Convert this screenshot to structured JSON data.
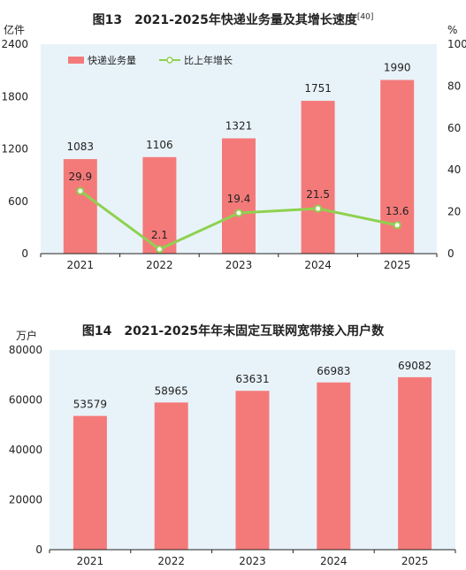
{
  "chart_data": [
    {
      "type": "bar",
      "title": "图13　2021-2025年快递业务量及其增长速度",
      "title_note": "[40]",
      "ylabel_left": "亿件",
      "ylabel_right": "%",
      "categories": [
        "2021",
        "2022",
        "2023",
        "2024",
        "2025"
      ],
      "ylim_left": [
        0,
        2400
      ],
      "yticks_left": [
        "0",
        "600",
        "1200",
        "1800",
        "2400"
      ],
      "ylim_right": [
        0,
        100
      ],
      "yticks_right": [
        "0",
        "20",
        "40",
        "60",
        "80",
        "100"
      ],
      "legend_position": "top-left",
      "series": [
        {
          "name": "快递业务量",
          "type": "bar",
          "axis": "left",
          "color": "#f47a7a",
          "values": [
            1083,
            1106,
            1321,
            1751,
            1990
          ],
          "labels": [
            "1083",
            "1106",
            "1321",
            "1751",
            "1990"
          ]
        },
        {
          "name": "比上年增长",
          "type": "line",
          "axis": "right",
          "color": "#8fd150",
          "values": [
            29.9,
            2.1,
            19.4,
            21.5,
            13.6
          ],
          "labels": [
            "29.9",
            "2.1",
            "19.4",
            "21.5",
            "13.6"
          ]
        }
      ]
    },
    {
      "type": "bar",
      "title": "图14　2021-2025年年末固定互联网宽带接入用户数",
      "ylabel": "万户",
      "categories": [
        "2021",
        "2022",
        "2023",
        "2024",
        "2025"
      ],
      "ylim": [
        0,
        80000
      ],
      "yticks": [
        "0",
        "20000",
        "40000",
        "60000",
        "80000"
      ],
      "series": [
        {
          "type": "bar",
          "color": "#f47a7a",
          "values": [
            53579,
            58965,
            63631,
            66983,
            69082
          ],
          "labels": [
            "53579",
            "58965",
            "63631",
            "66983",
            "69082"
          ]
        }
      ]
    }
  ],
  "colors": {
    "plot_background": "#e8f3f9",
    "bar": "#f47a7a",
    "line": "#8fd150",
    "axis": "#222222"
  }
}
